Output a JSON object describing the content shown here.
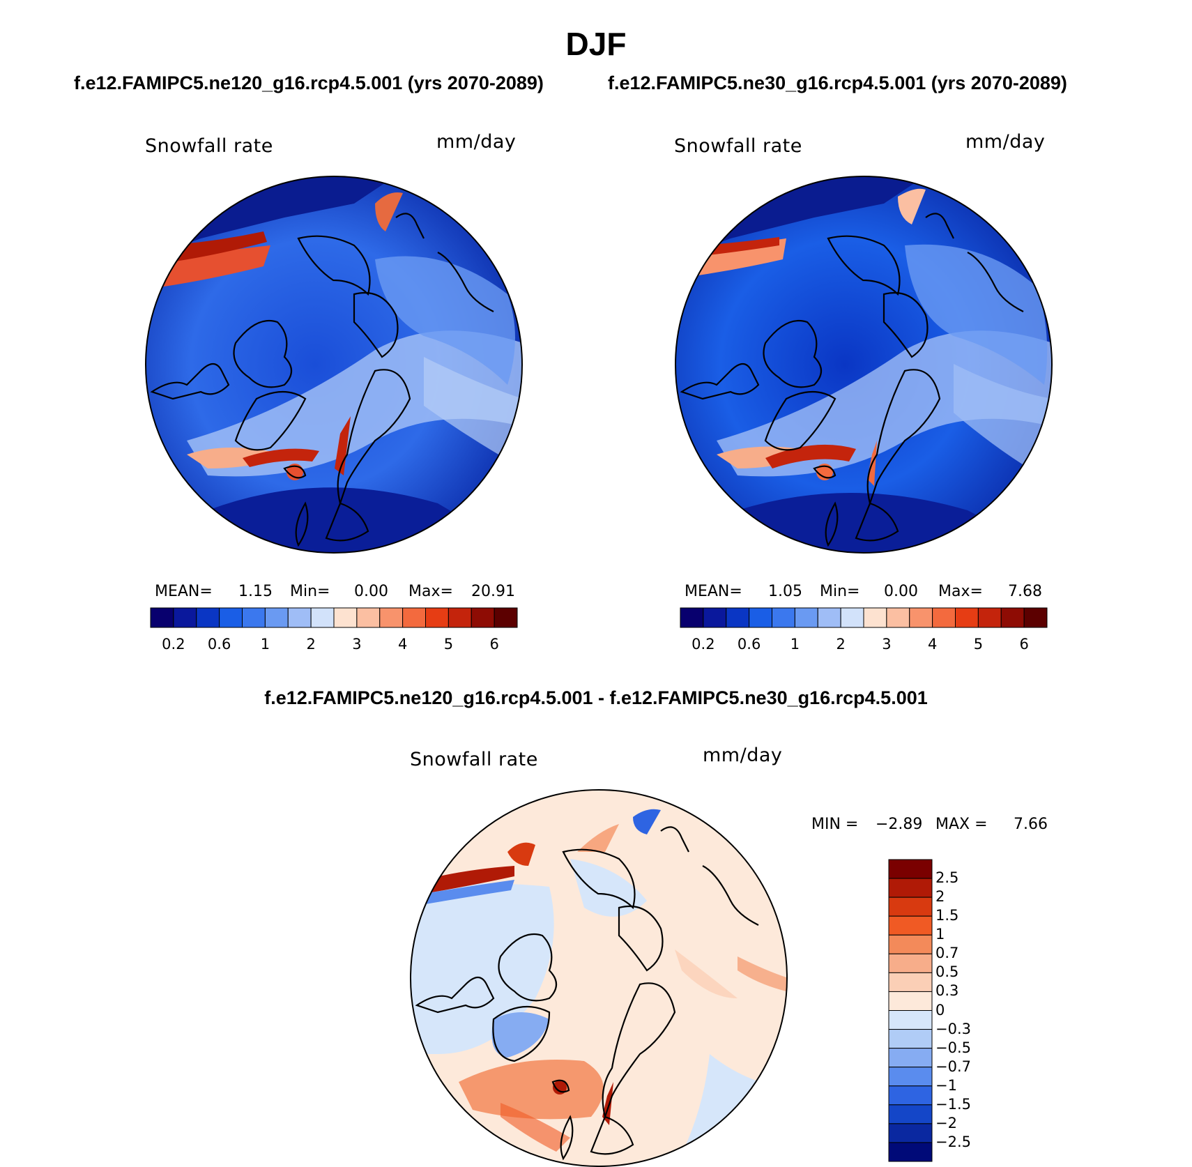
{
  "title": "DJF",
  "subtitles": {
    "left": "f.e12.FAMIPC5.ne120_g16.rcp4.5.001 (yrs 2070-2089)",
    "right": "f.e12.FAMIPC5.ne30_g16.rcp4.5.001 (yrs 2070-2089)"
  },
  "panels": [
    {
      "variable": "Snowfall rate",
      "units": "mm/day",
      "stats": {
        "mean_label": "MEAN=",
        "mean": "1.15",
        "min_label": "Min=",
        "min": "0.00",
        "max_label": "Max=",
        "max": "20.91"
      }
    },
    {
      "variable": "Snowfall rate",
      "units": "mm/day",
      "stats": {
        "mean_label": "MEAN=",
        "mean": "1.05",
        "min_label": "Min=",
        "min": "0.00",
        "max_label": "Max=",
        "max": "7.68"
      }
    }
  ],
  "colorbar": {
    "colors": [
      "#08006e",
      "#0a189c",
      "#0a36c4",
      "#1a5ee6",
      "#3b78ee",
      "#6a9af2",
      "#9fbdf6",
      "#d2e2fa",
      "#fde2d0",
      "#fbbfa2",
      "#f8936c",
      "#f36a3e",
      "#e63d14",
      "#c4240c",
      "#8e0c04",
      "#5c0000"
    ],
    "tick_labels": [
      "0.2",
      "0.6",
      "1",
      "2",
      "3",
      "4",
      "5",
      "6"
    ]
  },
  "difference": {
    "title": "f.e12.FAMIPC5.ne120_g16.rcp4.5.001 - f.e12.FAMIPC5.ne30_g16.rcp4.5.001",
    "variable": "Snowfall rate",
    "units": "mm/day",
    "min_label": "MIN =",
    "min": "−2.89",
    "max_label": "MAX =",
    "max": "7.66",
    "colorbar": {
      "colors_top_to_bottom": [
        "#7a0000",
        "#b01a06",
        "#d83a10",
        "#f05a24",
        "#f38a5a",
        "#f7ad8a",
        "#fbcfb6",
        "#fde9da",
        "#d6e6fa",
        "#b0ccf6",
        "#86acf2",
        "#5a8cee",
        "#2e64e2",
        "#1446c8",
        "#0a28a0",
        "#000a78"
      ],
      "tick_labels": [
        "2.5",
        "2",
        "1.5",
        "1",
        "0.7",
        "0.5",
        "0.3",
        "0",
        "−0.3",
        "−0.5",
        "−0.7",
        "−1",
        "−1.5",
        "−2",
        "−2.5"
      ]
    }
  }
}
